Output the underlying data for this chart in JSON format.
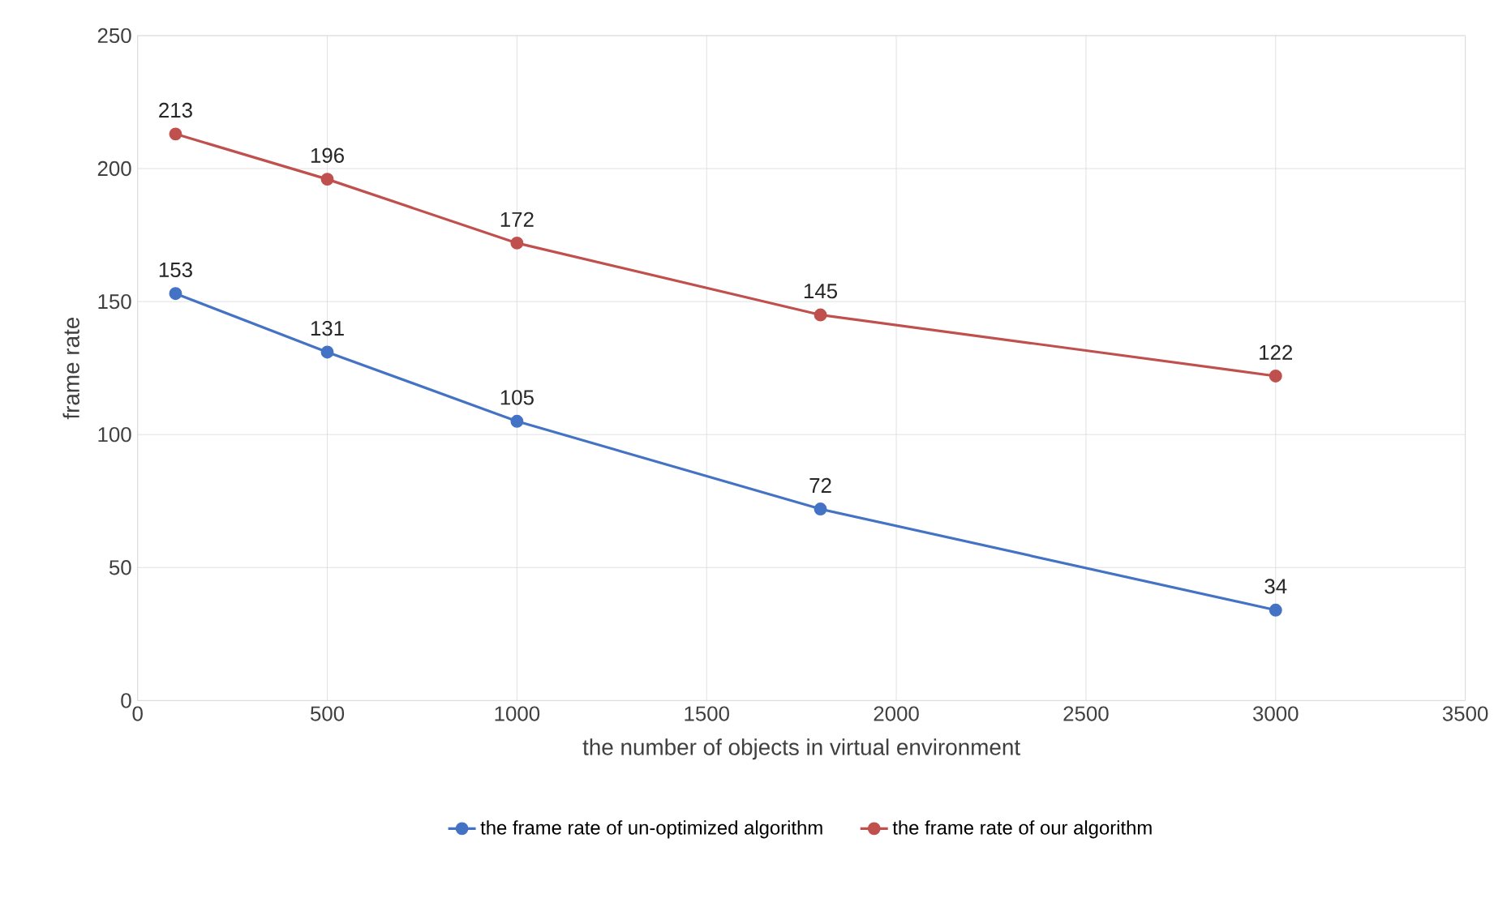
{
  "chart_data": {
    "type": "line",
    "xlabel": "the number of objects in virtual environment",
    "ylabel": "frame rate",
    "x": [
      100,
      500,
      1000,
      1800,
      3000
    ],
    "series": [
      {
        "name": "the frame rate of un-optimized algorithm",
        "color": "#4472c4",
        "values": [
          153,
          131,
          105,
          72,
          34
        ]
      },
      {
        "name": "the frame rate of our algorithm",
        "color": "#c0504d",
        "values": [
          213,
          196,
          172,
          145,
          122
        ]
      }
    ],
    "xlim": [
      0,
      3500
    ],
    "xticks": [
      0,
      500,
      1000,
      1500,
      2000,
      2500,
      3000,
      3500
    ],
    "ylim": [
      0,
      250
    ],
    "yticks": [
      0,
      50,
      100,
      150,
      200,
      250
    ],
    "grid": true,
    "legend": "bottom",
    "marker": "circle",
    "line_style": "solid",
    "data_labels": true
  }
}
